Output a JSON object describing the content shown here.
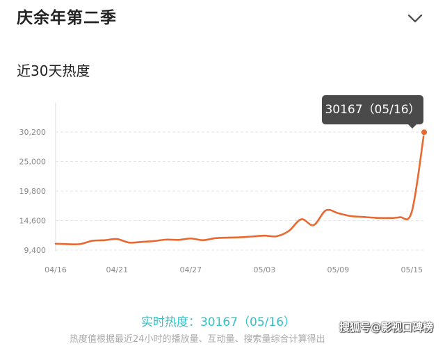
{
  "header": {
    "title": "庆余年第二季",
    "expand_icon": "chevron-down-icon"
  },
  "section": {
    "title": "近30天热度"
  },
  "tooltip": {
    "text": "30167（05/16）"
  },
  "realtime": {
    "text": "实时热度：30167（05/16）"
  },
  "footnote": {
    "text": "热度值根据最近24小时的播放量、互动量、搜索量综合计算得出"
  },
  "watermark": {
    "text": "搜狐号@影视口碑榜"
  },
  "colors": {
    "line": "#e8682f",
    "realtime_text": "#2ec3c8",
    "tooltip_bg": "#4a4a4a"
  },
  "chart_data": {
    "type": "line",
    "title": "",
    "xlabel": "",
    "ylabel": "",
    "x": [
      "04/16",
      "04/17",
      "04/18",
      "04/19",
      "04/20",
      "04/21",
      "04/22",
      "04/23",
      "04/24",
      "04/25",
      "04/26",
      "04/27",
      "04/28",
      "04/29",
      "04/30",
      "05/01",
      "05/02",
      "05/03",
      "05/04",
      "05/05",
      "05/06",
      "05/07",
      "05/08",
      "05/09",
      "05/10",
      "05/11",
      "05/12",
      "05/13",
      "05/14",
      "05/15",
      "05/16"
    ],
    "xticks": [
      "04/16",
      "04/21",
      "04/27",
      "05/03",
      "05/09",
      "05/15"
    ],
    "ytick_labels": [
      "9,400",
      "14,600",
      "19,800",
      "25,000",
      "30,200"
    ],
    "ytick_values": [
      9400,
      14600,
      19800,
      25000,
      30200
    ],
    "ylim": [
      9400,
      30200
    ],
    "grid": true,
    "legend": "none",
    "series": [
      {
        "name": "",
        "values": [
          10520,
          10450,
          10470,
          11050,
          11150,
          11350,
          10720,
          10850,
          11000,
          11250,
          11200,
          11450,
          11150,
          11500,
          11600,
          11650,
          11800,
          11950,
          11850,
          12800,
          14850,
          13800,
          16400,
          15900,
          15400,
          15250,
          15100,
          15050,
          15200,
          16200,
          30167
        ]
      }
    ]
  }
}
